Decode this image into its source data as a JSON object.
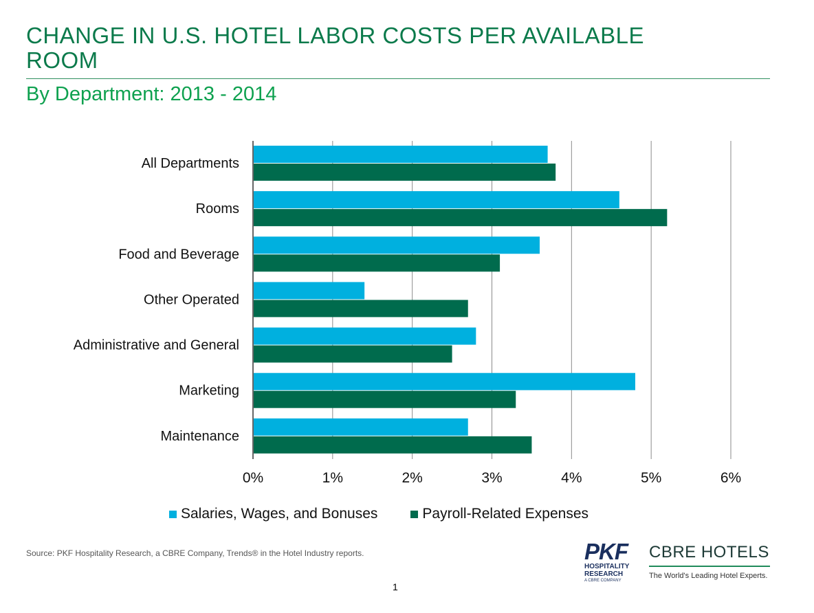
{
  "header": {
    "title": "CHANGE IN U.S. HOTEL LABOR COSTS PER AVAILABLE ROOM",
    "subtitle": "By Department: 2013 - 2014"
  },
  "chart_data": {
    "type": "bar",
    "orientation": "horizontal",
    "categories": [
      "All Departments",
      "Rooms",
      "Food and Beverage",
      "Other Operated",
      "Administrative and General",
      "Marketing",
      "Maintenance"
    ],
    "series": [
      {
        "name": "Salaries, Wages, and Bonuses",
        "color": "#00b0df",
        "values": [
          3.7,
          4.6,
          3.6,
          1.4,
          2.8,
          4.8,
          2.7
        ]
      },
      {
        "name": "Payroll-Related Expenses",
        "color": "#006b4d",
        "values": [
          3.8,
          5.2,
          3.1,
          2.7,
          2.5,
          3.3,
          3.5
        ]
      }
    ],
    "xlim": [
      0,
      6
    ],
    "xticks": [
      0,
      1,
      2,
      3,
      4,
      5,
      6
    ],
    "xtick_labels": [
      "0%",
      "1%",
      "2%",
      "3%",
      "4%",
      "5%",
      "6%"
    ],
    "grid": true,
    "legend_position": "bottom",
    "xlabel": "",
    "ylabel": ""
  },
  "footer": {
    "source": "Source: PKF Hospitality Research, a CBRE Company, Trends® in the Hotel Industry reports.",
    "page_number": "1"
  },
  "logos": {
    "pkf_name": "PKF",
    "pkf_line1": "HOSPITALITY",
    "pkf_line2": "RESEARCH",
    "pkf_line3": "A CBRE COMPANY",
    "cbre_name": "CBRE HOTELS",
    "cbre_tagline": "The World's Leading Hotel Experts."
  }
}
